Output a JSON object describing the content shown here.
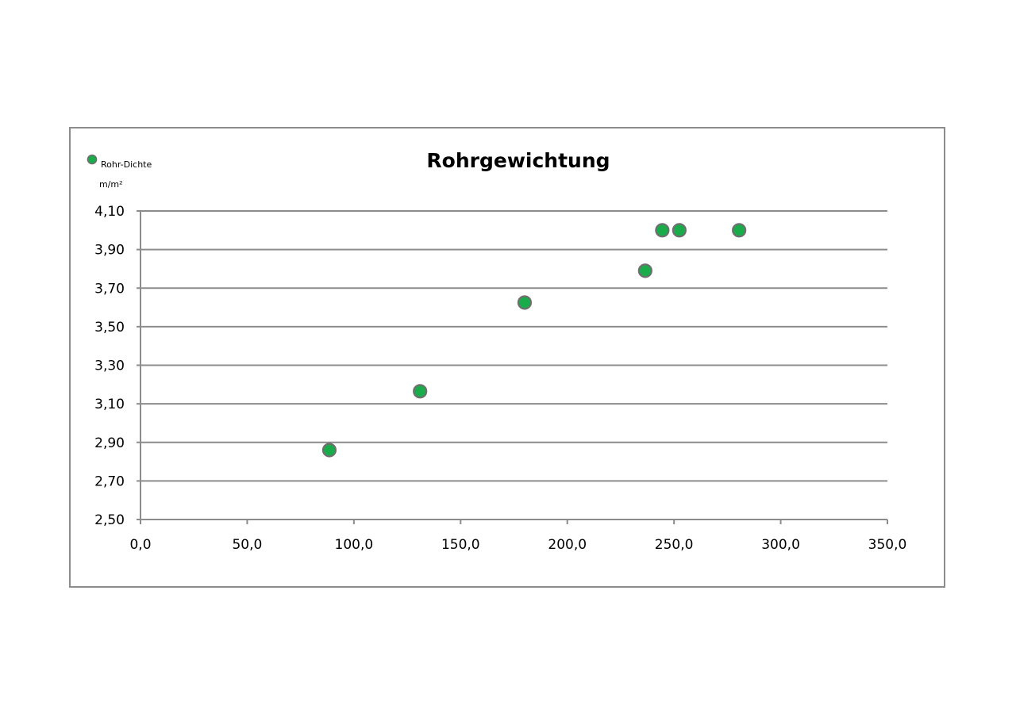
{
  "chart_data": {
    "type": "scatter",
    "title": "Rohrgewichtung",
    "ylabel": "m/m²",
    "xlabel": "",
    "legend": {
      "position": "top-left",
      "entries": [
        "Rohr-Dichte"
      ]
    },
    "xlim": [
      0,
      350
    ],
    "ylim": [
      2.5,
      4.1
    ],
    "x_ticks": [
      "0,0",
      "50,0",
      "100,0",
      "150,0",
      "200,0",
      "250,0",
      "300,0",
      "350,0"
    ],
    "y_ticks": [
      "2,50",
      "2,70",
      "2,90",
      "3,10",
      "3,30",
      "3,50",
      "3,70",
      "3,90",
      "4,10"
    ],
    "grid": "horizontal",
    "series": [
      {
        "name": "Rohr-Dichte",
        "color": "#1aab4b",
        "edge_color": "#6f6f6f",
        "points": [
          {
            "x": 88.5,
            "y": 2.86
          },
          {
            "x": 131.0,
            "y": 3.165
          },
          {
            "x": 180.0,
            "y": 3.625
          },
          {
            "x": 236.5,
            "y": 3.79
          },
          {
            "x": 244.5,
            "y": 4.0
          },
          {
            "x": 252.5,
            "y": 4.0
          },
          {
            "x": 280.5,
            "y": 4.0
          }
        ]
      }
    ]
  }
}
